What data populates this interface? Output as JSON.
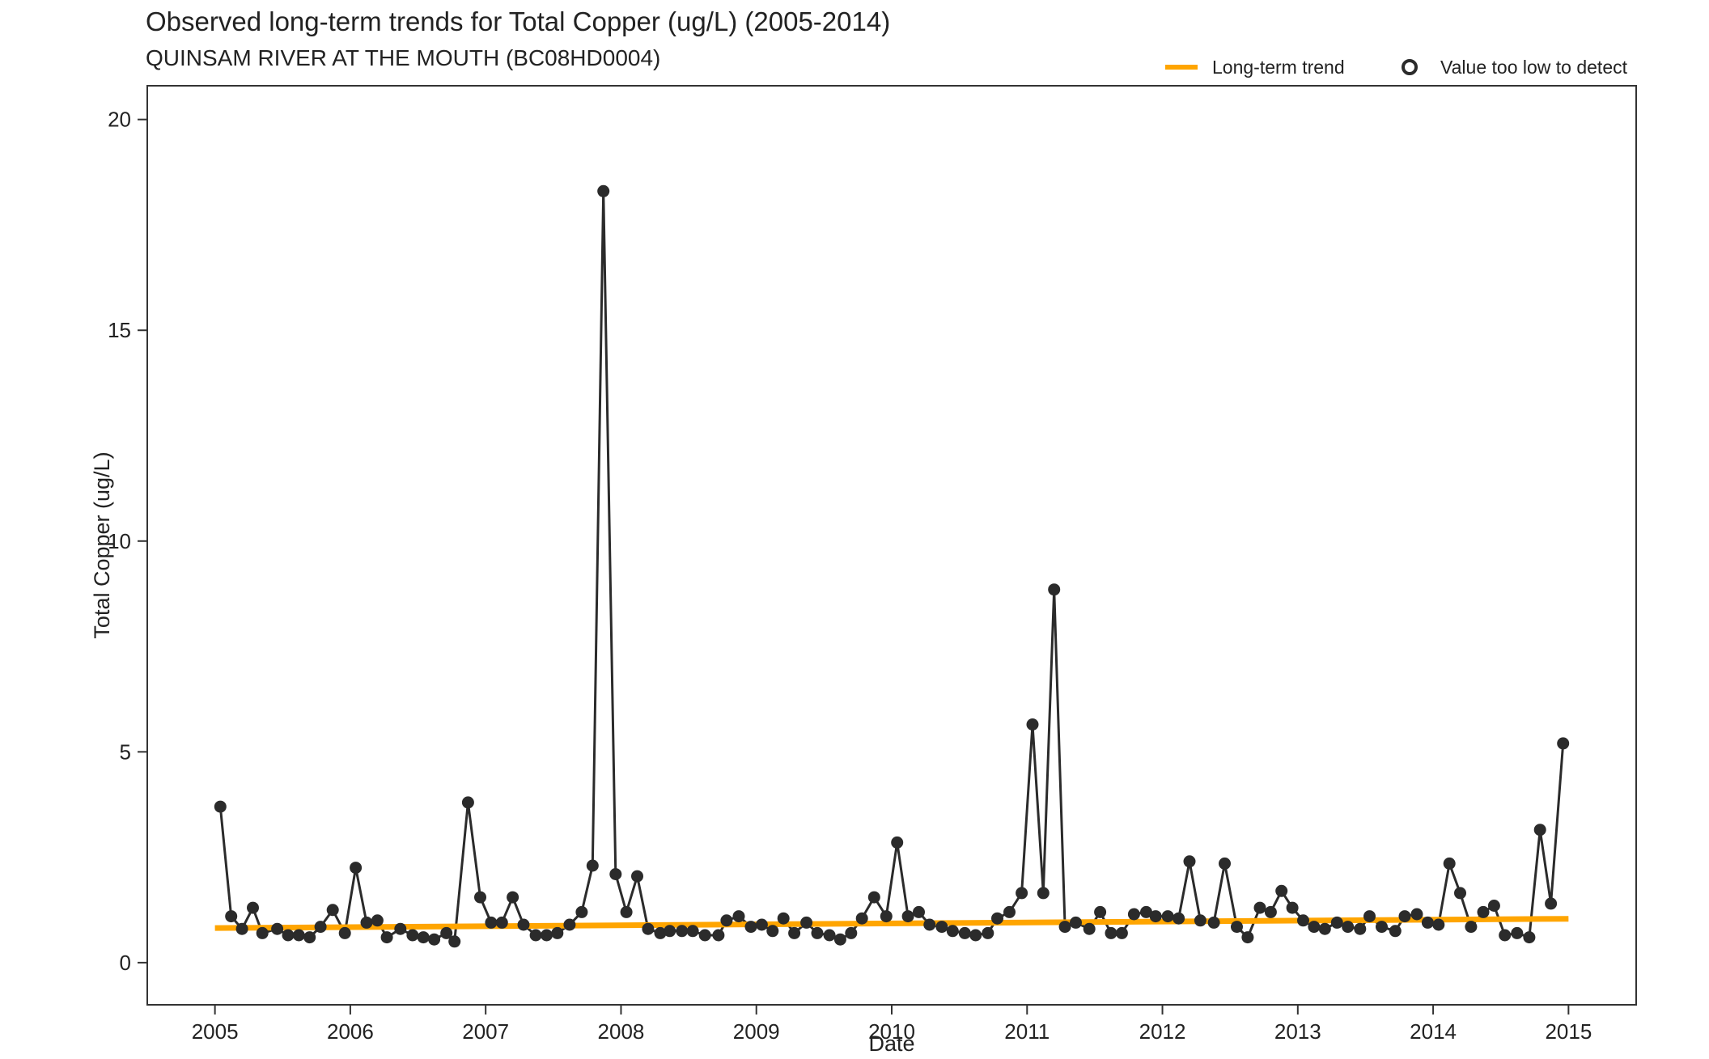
{
  "chart_data": {
    "type": "line",
    "title": "Observed long-term trends for Total Copper (ug/L) (2005-2014)",
    "subtitle": "QUINSAM RIVER AT THE MOUTH (BC08HD0004)",
    "xlabel": "Date",
    "ylabel": "Total Copper (ug/L)",
    "xlim": [
      2004.5,
      2015.5
    ],
    "ylim": [
      -1,
      20.8
    ],
    "x_ticks": [
      "2005",
      "2006",
      "2007",
      "2008",
      "2009",
      "2010",
      "2011",
      "2012",
      "2013",
      "2014",
      "2015"
    ],
    "y_ticks": [
      "0",
      "5",
      "10",
      "15",
      "20"
    ],
    "grid": false,
    "legend": {
      "placement": "top-right",
      "entries": [
        {
          "label": "Long-term trend",
          "symbol": "line",
          "color": "#FFA500"
        },
        {
          "label": "Value too low to detect",
          "symbol": "open-circle",
          "color": "#2b2b2b"
        }
      ]
    },
    "series": [
      {
        "kind": "observed",
        "color": "#2b2b2b",
        "x": [
          2005.04,
          2005.12,
          2005.2,
          2005.28,
          2005.35,
          2005.46,
          2005.54,
          2005.62,
          2005.7,
          2005.78,
          2005.87,
          2005.96,
          2006.04,
          2006.12,
          2006.2,
          2006.27,
          2006.37,
          2006.46,
          2006.54,
          2006.62,
          2006.71,
          2006.77,
          2006.87,
          2006.96,
          2007.04,
          2007.12,
          2007.2,
          2007.28,
          2007.37,
          2007.45,
          2007.53,
          2007.62,
          2007.71,
          2007.79,
          2007.87,
          2007.96,
          2008.04,
          2008.12,
          2008.2,
          2008.29,
          2008.36,
          2008.45,
          2008.53,
          2008.62,
          2008.72,
          2008.78,
          2008.87,
          2008.96,
          2009.04,
          2009.12,
          2009.2,
          2009.28,
          2009.37,
          2009.45,
          2009.54,
          2009.62,
          2009.7,
          2009.78,
          2009.87,
          2009.96,
          2010.04,
          2010.12,
          2010.2,
          2010.28,
          2010.37,
          2010.45,
          2010.54,
          2010.62,
          2010.71,
          2010.78,
          2010.87,
          2010.96,
          2011.04,
          2011.12,
          2011.2,
          2011.28,
          2011.36,
          2011.46,
          2011.54,
          2011.62,
          2011.7,
          2011.79,
          2011.88,
          2011.95,
          2012.04,
          2012.12,
          2012.2,
          2012.28,
          2012.38,
          2012.46,
          2012.55,
          2012.63,
          2012.72,
          2012.8,
          2012.88,
          2012.96,
          2013.04,
          2013.12,
          2013.2,
          2013.29,
          2013.37,
          2013.46,
          2013.53,
          2013.62,
          2013.72,
          2013.79,
          2013.88,
          2013.96,
          2014.04,
          2014.12,
          2014.2,
          2014.28,
          2014.37,
          2014.45,
          2014.53,
          2014.62,
          2014.71,
          2014.79,
          2014.87,
          2014.96
        ],
        "y": [
          3.7,
          1.1,
          0.8,
          1.3,
          0.7,
          0.8,
          0.65,
          0.65,
          0.6,
          0.85,
          1.25,
          0.7,
          2.25,
          0.95,
          1.0,
          0.6,
          0.8,
          0.65,
          0.6,
          0.55,
          0.7,
          0.5,
          3.8,
          1.55,
          0.95,
          0.95,
          1.55,
          0.9,
          0.65,
          0.65,
          0.7,
          0.9,
          1.2,
          2.3,
          18.3,
          2.1,
          1.2,
          2.05,
          0.8,
          0.7,
          0.75,
          0.75,
          0.75,
          0.65,
          0.65,
          1.0,
          1.1,
          0.85,
          0.9,
          0.75,
          1.05,
          0.7,
          0.95,
          0.7,
          0.65,
          0.55,
          0.7,
          1.05,
          1.55,
          1.1,
          2.85,
          1.1,
          1.2,
          0.9,
          0.85,
          0.75,
          0.7,
          0.65,
          0.7,
          1.05,
          1.2,
          1.65,
          5.65,
          1.65,
          8.85,
          0.85,
          0.95,
          0.8,
          1.2,
          0.7,
          0.7,
          1.15,
          1.2,
          1.1,
          1.1,
          1.05,
          2.4,
          1.0,
          0.95,
          2.35,
          0.85,
          0.6,
          1.3,
          1.2,
          1.7,
          1.3,
          1.0,
          0.85,
          0.8,
          0.95,
          0.85,
          0.8,
          1.1,
          0.85,
          0.75,
          1.1,
          1.15,
          0.95,
          0.9,
          2.35,
          1.65,
          0.85,
          1.2,
          1.35,
          0.65,
          0.7,
          0.6,
          3.15,
          1.4,
          5.2
        ]
      },
      {
        "kind": "trend",
        "name": "Long-term trend",
        "color": "#FFA500",
        "x": [
          2005.0,
          2015.0
        ],
        "y": [
          0.82,
          1.04
        ]
      }
    ]
  }
}
